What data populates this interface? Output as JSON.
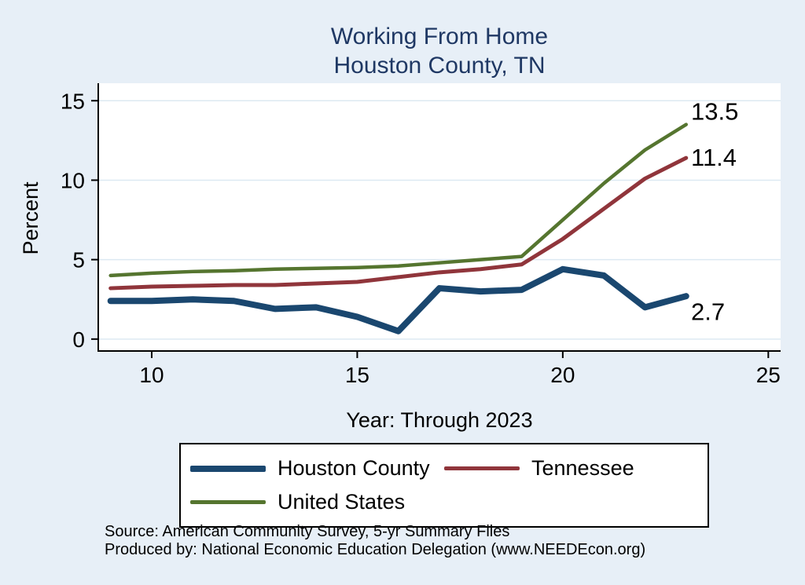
{
  "title": {
    "line1": "Working From Home",
    "line2": "Houston County, TN"
  },
  "colors": {
    "page_background": "#e7eff7",
    "title": "#1f3864",
    "plot_background": "#ffffff",
    "grid": "#dde9f2",
    "axis": "#000000",
    "houston_county": "#1a476f",
    "tennessee": "#90353b",
    "united_states": "#55752f"
  },
  "chart_data": {
    "type": "line",
    "x": [
      9,
      10,
      11,
      12,
      13,
      14,
      15,
      16,
      17,
      18,
      19,
      20,
      21,
      22,
      23
    ],
    "series": [
      {
        "name": "Houston County",
        "color": "#1a476f",
        "width": 8,
        "values": [
          2.4,
          2.4,
          2.5,
          2.4,
          1.9,
          2.0,
          1.4,
          0.5,
          3.2,
          3.0,
          3.1,
          4.4,
          4.0,
          2.0,
          2.7
        ],
        "end_label": "2.7"
      },
      {
        "name": "Tennessee",
        "color": "#90353b",
        "width": 5,
        "values": [
          3.2,
          3.3,
          3.35,
          3.4,
          3.4,
          3.5,
          3.6,
          3.9,
          4.2,
          4.4,
          4.7,
          6.3,
          8.2,
          10.1,
          11.4
        ],
        "end_label": "11.4"
      },
      {
        "name": "United States",
        "color": "#55752f",
        "width": 4.5,
        "values": [
          4.0,
          4.15,
          4.25,
          4.3,
          4.4,
          4.45,
          4.5,
          4.6,
          4.8,
          5.0,
          5.2,
          7.5,
          9.8,
          11.9,
          13.5
        ],
        "end_label": "13.5"
      }
    ],
    "annotations": [
      {
        "text": "13.5",
        "x": 23.12,
        "y": 14.35
      },
      {
        "text": "11.4",
        "x": 23.12,
        "y": 11.45
      },
      {
        "text": "2.7",
        "x": 23.12,
        "y": 1.75
      }
    ],
    "title": "Working From Home — Houston County, TN",
    "xlabel": "Year: Through 2023",
    "ylabel": "Percent",
    "xlim": [
      8.7,
      25.3
    ],
    "ylim": [
      -0.75,
      16.1
    ],
    "xticks": [
      10,
      15,
      20,
      25
    ],
    "yticks": [
      0,
      5,
      10,
      15
    ],
    "grid": "horizontal",
    "legend_position": "bottom"
  },
  "footer": {
    "line1": "Source: American Community Survey, 5-yr Summary Files",
    "line2": "Produced by: National Economic Education Delegation (www.NEEDEcon.org)"
  }
}
